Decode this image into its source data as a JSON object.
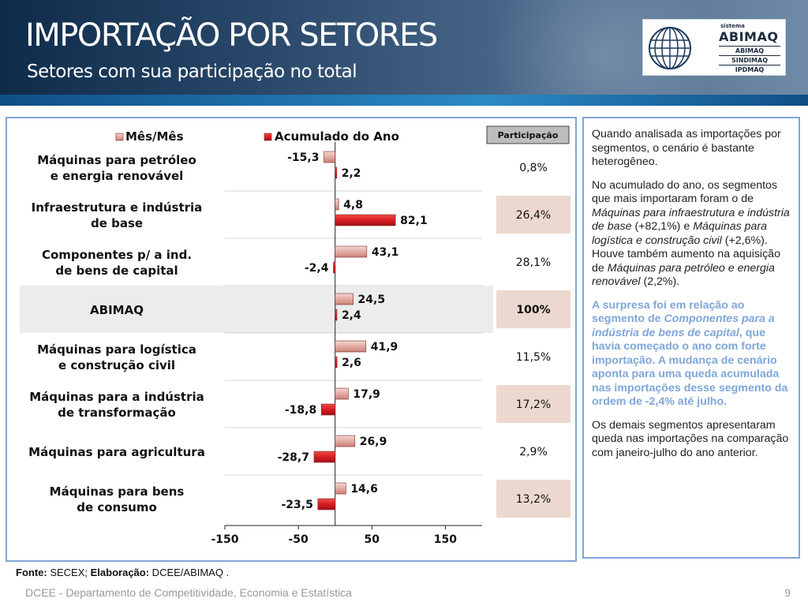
{
  "header": {
    "title": "IMPORTAÇÃO POR SETORES",
    "subtitle": "Setores com sua participação no total"
  },
  "logo": {
    "sistema": "sistema",
    "name": "ABIMAQ",
    "subs": [
      "ABIMAQ",
      "SINDIMAQ",
      "IPDMAQ"
    ]
  },
  "chart_data": {
    "type": "bar",
    "orientation": "horizontal",
    "categories": [
      "Máquinas para petróleo\ne energia renovável",
      "Infraestrutura e indústria\nde base",
      "Componentes p/ a ind.\nde bens de capital",
      "ABIMAQ",
      "Máquinas para logística\ne construção civil",
      "Máquinas para a indústria\nde transformação",
      "Máquinas para agricultura",
      "Máquinas para bens\nde consumo"
    ],
    "series": [
      {
        "name": "Mês/Mês",
        "values": [
          -15.3,
          4.8,
          43.1,
          24.5,
          41.9,
          17.9,
          26.9,
          14.6
        ],
        "labels": [
          "-15,3",
          "4,8",
          "43,1",
          "24,5",
          "41,9",
          "17,9",
          "26,9",
          "14,6"
        ],
        "color": "#e3aaa2"
      },
      {
        "name": "Acumulado do Ano",
        "values": [
          2.2,
          82.1,
          -2.4,
          2.4,
          2.6,
          -18.8,
          -28.7,
          -23.5
        ],
        "labels": [
          "2,2",
          "82,1",
          "-2,4",
          "2,4",
          "2,6",
          "-18,8",
          "-28,7",
          "-23,5"
        ],
        "color": "#d81e22"
      }
    ],
    "participacao_header": "Participação",
    "participacao": [
      "0,8%",
      "26,4%",
      "28,1%",
      "100%",
      "11,5%",
      "17,2%",
      "2,9%",
      "13,2%"
    ],
    "xlim": [
      -150,
      200
    ],
    "xticks": [
      -150,
      -50,
      50,
      150
    ],
    "xtick_labels": [
      "-150",
      "-50",
      "50",
      "150"
    ],
    "grid": true,
    "legend_position": "top"
  },
  "commentary": {
    "p1": "Quando analisada as importações por segmentos, o cenário é bastante heterogêneo.",
    "p2_a": "No acumulado do ano, os segmentos que mais importaram foram o de ",
    "p2_b": "Máquinas para infraestrutura e indústria de base",
    "p2_c": " (+82,1%) e ",
    "p2_d": "Máquinas para logística e construção civil",
    "p2_e": " (+2,6%). Houve também aumento na aquisição de ",
    "p2_f": "Máquinas para petróleo e energia renovável",
    "p2_g": " (2,2%).",
    "p3_a": "A surpresa foi em relação ao segmento de ",
    "p3_b": "Componentes para a indústria de bens de capital",
    "p3_c": ", que havia começado o ano com forte importação. A mudança de cenário aponta para uma queda acumulada nas importações desse segmento da ordem de -2,4% até julho.",
    "p4": "Os demais segmentos apresentaram queda nas importações na comparação com janeiro-julho do ano anterior."
  },
  "source": {
    "fonte_label": "Fonte:",
    "fonte_value": " SECEX; ",
    "elab_label": "Elaboração:",
    "elab_value": " DCEE/ABIMAQ ."
  },
  "footer": {
    "text": "DCEE - Departamento de Competitividade, Economia e Estatística",
    "page": "9"
  }
}
